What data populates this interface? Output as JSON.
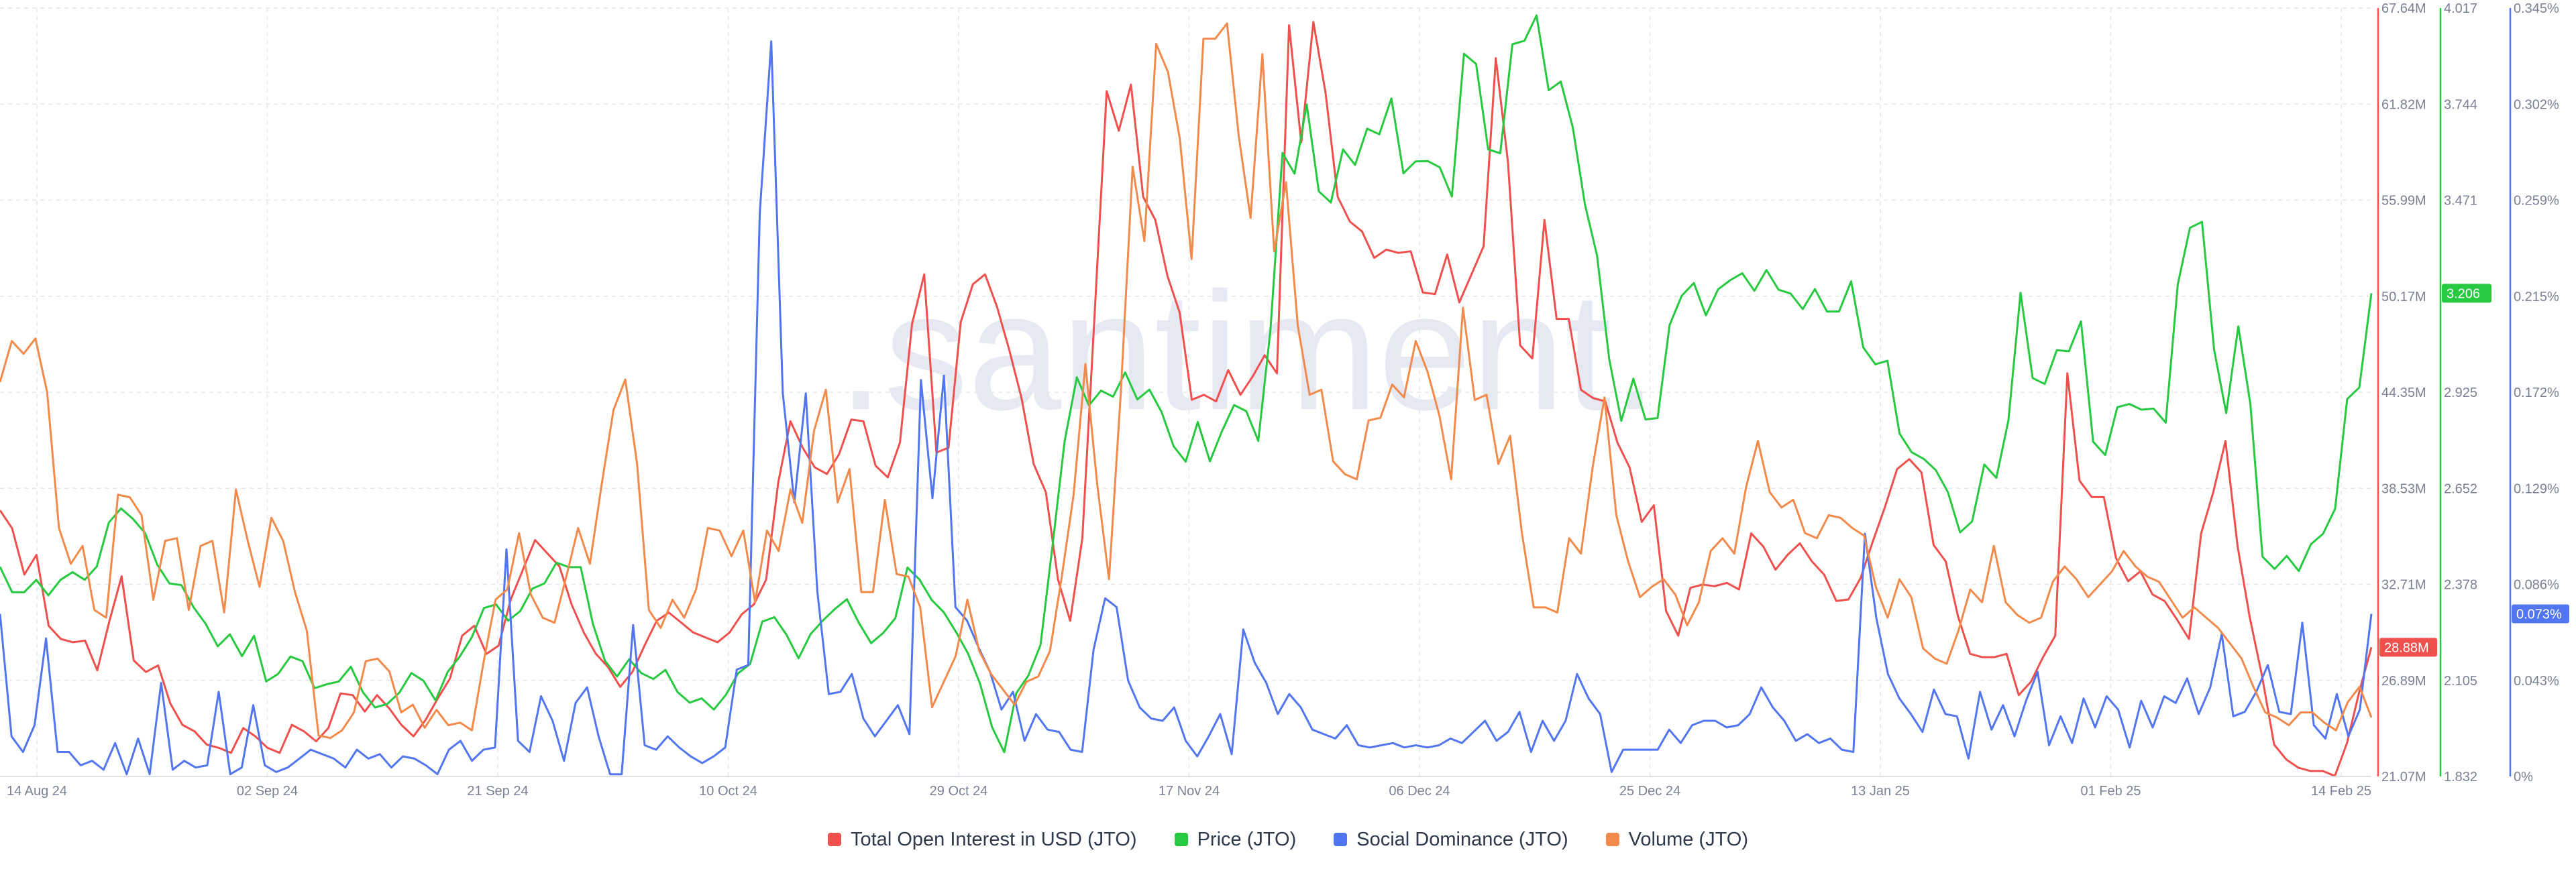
{
  "chart_data": {
    "type": "line",
    "title": "",
    "watermark": ".santiment.",
    "grid": true,
    "legend_position": "bottom-center",
    "x_ticks": [
      "14 Aug 24",
      "02 Sep 24",
      "21 Sep 24",
      "10 Oct 24",
      "29 Oct 24",
      "17 Nov 24",
      "06 Dec 24",
      "25 Dec 24",
      "13 Jan 25",
      "01 Feb 25",
      "14 Feb 25"
    ],
    "axes": {
      "oi": {
        "ticks": [
          "67.64M",
          "61.82M",
          "55.99M",
          "50.17M",
          "44.35M",
          "38.53M",
          "32.71M",
          "26.89M",
          "21.07M"
        ],
        "ylim": [
          21.07,
          67.64
        ],
        "unit": "M",
        "color": "#f0504d"
      },
      "price": {
        "ticks": [
          "4.017",
          "3.744",
          "3.471",
          "3.198",
          "2.925",
          "2.652",
          "2.378",
          "2.105",
          "1.832"
        ],
        "ylim": [
          1.832,
          4.017
        ],
        "color": "#26c940"
      },
      "social": {
        "ticks": [
          "0.345%",
          "0.302%",
          "0.259%",
          "0.215%",
          "0.172%",
          "0.129%",
          "0.086%",
          "0.043%",
          "0%"
        ],
        "ylim": [
          0,
          0.345
        ],
        "color": "#5275f0"
      }
    },
    "series": [
      {
        "name": "Total Open Interest in USD (JTO)",
        "key": "oi",
        "axis": "oi",
        "color": "#f0504d",
        "last_label": "28.88M",
        "values": [
          37.2,
          36.1,
          33.3,
          34.5,
          30.2,
          29.4,
          29.2,
          29.3,
          27.5,
          30.5,
          33.2,
          28.1,
          27.4,
          27.8,
          25.5,
          24.2,
          23.8,
          23.0,
          22.8,
          22.5,
          24.0,
          23.5,
          22.8,
          22.5,
          24.2,
          23.8,
          23.2,
          24.0,
          26.1,
          26.0,
          25.0,
          26.0,
          25.2,
          24.2,
          23.5,
          24.5,
          25.8,
          27.0,
          29.6,
          30.2,
          28.5,
          29.0,
          31.8,
          33.6,
          35.4,
          34.6,
          33.8,
          31.5,
          29.8,
          28.5,
          27.7,
          26.5,
          27.4,
          29.0,
          30.5,
          31.0,
          30.4,
          29.8,
          29.5,
          29.2,
          29.8,
          30.9,
          31.5,
          33.0,
          38.9,
          42.6,
          41.0,
          39.8,
          39.4,
          40.6,
          42.7,
          42.6,
          39.9,
          39.2,
          41.3,
          48.5,
          51.5,
          40.7,
          41.0,
          48.6,
          50.9,
          51.5,
          49.5,
          46.9,
          44.0,
          40.0,
          38.3,
          33.0,
          30.5,
          35.5,
          48.9,
          62.6,
          60.2,
          63.0,
          56.2,
          54.8,
          51.4,
          49.2,
          43.9,
          44.2,
          43.8,
          45.7,
          44.2,
          45.3,
          46.6,
          45.5,
          66.6,
          59.5,
          66.8,
          62.5,
          56.2,
          54.7,
          54.1,
          52.5,
          53.0,
          52.8,
          52.9,
          50.4,
          50.3,
          52.7,
          49.8,
          51.5,
          53.2,
          64.6,
          58.3,
          47.2,
          46.4,
          54.8,
          48.8,
          48.8,
          44.5,
          44.0,
          43.8,
          41.3,
          39.8,
          36.5,
          37.5,
          31.1,
          29.6,
          32.5,
          32.7,
          32.6,
          32.8,
          32.4,
          35.8,
          35.0,
          33.6,
          34.5,
          35.2,
          34.1,
          33.3,
          31.7,
          31.8,
          33.1,
          35.3,
          37.4,
          39.7,
          40.3,
          39.5,
          35.1,
          34.1,
          30.8,
          28.5,
          28.3,
          28.3,
          28.5,
          26.0,
          26.8,
          28.3,
          29.6,
          45.5,
          39.0,
          38.0,
          38.0,
          34.3,
          32.9,
          33.5,
          32.1,
          31.7,
          30.6,
          29.4,
          35.8,
          38.3,
          41.4,
          35.0,
          30.7,
          27.2,
          23.0,
          22.1,
          21.6,
          21.4,
          21.4,
          21.1,
          23.1,
          26.2,
          28.9
        ]
      },
      {
        "name": "Price (JTO)",
        "key": "price",
        "axis": "price",
        "color": "#26c940",
        "last_label": "3.206",
        "values": [
          2.428,
          2.356,
          2.356,
          2.391,
          2.347,
          2.391,
          2.413,
          2.391,
          2.429,
          2.554,
          2.594,
          2.564,
          2.524,
          2.434,
          2.381,
          2.376,
          2.313,
          2.266,
          2.202,
          2.236,
          2.174,
          2.232,
          2.102,
          2.124,
          2.173,
          2.16,
          2.083,
          2.094,
          2.102,
          2.144,
          2.071,
          2.028,
          2.038,
          2.07,
          2.126,
          2.104,
          2.048,
          2.129,
          2.173,
          2.228,
          2.311,
          2.321,
          2.275,
          2.302,
          2.366,
          2.381,
          2.44,
          2.427,
          2.427,
          2.266,
          2.161,
          2.116,
          2.165,
          2.126,
          2.109,
          2.135,
          2.072,
          2.042,
          2.054,
          2.022,
          2.064,
          2.125,
          2.152,
          2.272,
          2.285,
          2.235,
          2.168,
          2.237,
          2.275,
          2.308,
          2.336,
          2.268,
          2.211,
          2.24,
          2.282,
          2.426,
          2.392,
          2.334,
          2.299,
          2.244,
          2.182,
          2.096,
          1.972,
          1.901,
          2.069,
          2.119,
          2.206,
          2.49,
          2.786,
          2.967,
          2.887,
          2.929,
          2.912,
          2.981,
          2.904,
          2.932,
          2.869,
          2.771,
          2.727,
          2.84,
          2.728,
          2.814,
          2.888,
          2.871,
          2.786,
          3.101,
          3.605,
          3.546,
          3.743,
          3.496,
          3.464,
          3.615,
          3.571,
          3.674,
          3.658,
          3.76,
          3.547,
          3.581,
          3.582,
          3.564,
          3.481,
          3.887,
          3.858,
          3.615,
          3.604,
          3.914,
          3.924,
          3.996,
          3.783,
          3.808,
          3.677,
          3.458,
          3.313,
          3.019,
          2.843,
          2.963,
          2.847,
          2.851,
          3.116,
          3.199,
          3.235,
          3.143,
          3.217,
          3.243,
          3.263,
          3.213,
          3.272,
          3.216,
          3.205,
          3.161,
          3.218,
          3.154,
          3.154,
          3.24,
          3.052,
          3.004,
          3.014,
          2.807,
          2.754,
          2.735,
          2.703,
          2.64,
          2.526,
          2.557,
          2.719,
          2.681,
          2.844,
          3.207,
          2.965,
          2.948,
          3.044,
          3.041,
          3.126,
          2.784,
          2.746,
          2.882,
          2.891,
          2.875,
          2.878,
          2.838,
          3.231,
          3.392,
          3.409,
          3.046,
          2.865,
          3.112,
          2.891,
          2.457,
          2.422,
          2.459,
          2.416,
          2.492,
          2.522,
          2.593,
          2.905,
          2.938,
          3.206
        ]
      },
      {
        "name": "Social Dominance (JTO)",
        "key": "social",
        "axis": "social",
        "color": "#5275f0",
        "last_label": "0.073%",
        "values": [
          0.073,
          0.018,
          0.011,
          0.023,
          0.062,
          0.011,
          0.011,
          0.005,
          0.007,
          0.003,
          0.015,
          0.001,
          0.017,
          0.001,
          0.042,
          0.003,
          0.007,
          0.004,
          0.005,
          0.038,
          0.001,
          0.004,
          0.032,
          0.005,
          0.002,
          0.004,
          0.008,
          0.012,
          0.01,
          0.008,
          0.004,
          0.012,
          0.008,
          0.01,
          0.004,
          0.009,
          0.008,
          0.005,
          0.001,
          0.012,
          0.016,
          0.007,
          0.012,
          0.013,
          0.102,
          0.016,
          0.011,
          0.036,
          0.025,
          0.007,
          0.033,
          0.04,
          0.018,
          0.001,
          0.001,
          0.068,
          0.014,
          0.012,
          0.018,
          0.013,
          0.009,
          0.006,
          0.009,
          0.013,
          0.048,
          0.05,
          0.253,
          0.33,
          0.172,
          0.123,
          0.172,
          0.083,
          0.037,
          0.038,
          0.046,
          0.026,
          0.018,
          0.025,
          0.032,
          0.019,
          0.178,
          0.125,
          0.18,
          0.076,
          0.07,
          0.058,
          0.047,
          0.03,
          0.038,
          0.016,
          0.028,
          0.021,
          0.02,
          0.012,
          0.011,
          0.057,
          0.08,
          0.076,
          0.043,
          0.031,
          0.026,
          0.025,
          0.031,
          0.016,
          0.009,
          0.018,
          0.028,
          0.01,
          0.066,
          0.051,
          0.042,
          0.028,
          0.037,
          0.031,
          0.021,
          0.019,
          0.017,
          0.023,
          0.014,
          0.013,
          0.014,
          0.015,
          0.013,
          0.014,
          0.013,
          0.014,
          0.017,
          0.015,
          0.02,
          0.025,
          0.016,
          0.02,
          0.029,
          0.011,
          0.025,
          0.016,
          0.025,
          0.046,
          0.035,
          0.028,
          0.002,
          0.012,
          0.012,
          0.012,
          0.012,
          0.021,
          0.015,
          0.023,
          0.025,
          0.025,
          0.022,
          0.023,
          0.028,
          0.04,
          0.031,
          0.025,
          0.016,
          0.019,
          0.015,
          0.017,
          0.012,
          0.011,
          0.109,
          0.071,
          0.046,
          0.035,
          0.028,
          0.02,
          0.039,
          0.028,
          0.027,
          0.008,
          0.038,
          0.021,
          0.032,
          0.018,
          0.034,
          0.047,
          0.014,
          0.027,
          0.015,
          0.035,
          0.022,
          0.036,
          0.03,
          0.013,
          0.034,
          0.022,
          0.036,
          0.033,
          0.044,
          0.028,
          0.04,
          0.064,
          0.027,
          0.029,
          0.038,
          0.05,
          0.029,
          0.028,
          0.069,
          0.023,
          0.017,
          0.037,
          0.018,
          0.03,
          0.073
        ]
      },
      {
        "name": "Volume (JTO)",
        "key": "volume",
        "axis": "volume",
        "color": "#f28a4b",
        "values": [
          0.154,
          0.17,
          0.165,
          0.171,
          0.15,
          0.097,
          0.083,
          0.09,
          0.065,
          0.062,
          0.11,
          0.109,
          0.102,
          0.069,
          0.092,
          0.093,
          0.065,
          0.09,
          0.092,
          0.064,
          0.112,
          0.092,
          0.074,
          0.101,
          0.092,
          0.072,
          0.057,
          0.016,
          0.015,
          0.018,
          0.025,
          0.045,
          0.046,
          0.041,
          0.025,
          0.028,
          0.019,
          0.026,
          0.02,
          0.021,
          0.018,
          0.045,
          0.069,
          0.073,
          0.095,
          0.071,
          0.062,
          0.06,
          0.078,
          0.097,
          0.083,
          0.114,
          0.143,
          0.155,
          0.122,
          0.065,
          0.058,
          0.069,
          0.062,
          0.073,
          0.097,
          0.096,
          0.086,
          0.096,
          0.068,
          0.096,
          0.088,
          0.112,
          0.099,
          0.135,
          0.151,
          0.107,
          0.12,
          0.072,
          0.072,
          0.108,
          0.079,
          0.078,
          0.066,
          0.027,
          0.037,
          0.047,
          0.069,
          0.049,
          0.04,
          0.034,
          0.028,
          0.037,
          0.039,
          0.049,
          0.078,
          0.11,
          0.161,
          0.114,
          0.077,
          0.15,
          0.238,
          0.209,
          0.286,
          0.275,
          0.249,
          0.202,
          0.288,
          0.288,
          0.294,
          0.25,
          0.218,
          0.282,
          0.205,
          0.232,
          0.176,
          0.149,
          0.151,
          0.123,
          0.118,
          0.116,
          0.139,
          0.14,
          0.153,
          0.148,
          0.17,
          0.158,
          0.141,
          0.116,
          0.183,
          0.147,
          0.149,
          0.122,
          0.133,
          0.095,
          0.066,
          0.066,
          0.064,
          0.093,
          0.087,
          0.121,
          0.148,
          0.102,
          0.084,
          0.07,
          0.074,
          0.077,
          0.071,
          0.059,
          0.068,
          0.088,
          0.093,
          0.087,
          0.113,
          0.131,
          0.111,
          0.105,
          0.108,
          0.095,
          0.093,
          0.102,
          0.101,
          0.097,
          0.094,
          0.074,
          0.062,
          0.077,
          0.07,
          0.05,
          0.046,
          0.044,
          0.057,
          0.073,
          0.068,
          0.09,
          0.068,
          0.063,
          0.06,
          0.062,
          0.076,
          0.082,
          0.077,
          0.07,
          0.075,
          0.08,
          0.088,
          0.082,
          0.078,
          0.076,
          0.069,
          0.062,
          0.066,
          0.062,
          0.058,
          0.052,
          0.046,
          0.035,
          0.025,
          0.023,
          0.02,
          0.025,
          0.025,
          0.021,
          0.018,
          0.029,
          0.035,
          0.023
        ]
      }
    ],
    "legend": [
      {
        "label": "Total Open Interest in USD (JTO)",
        "color": "#f0504d"
      },
      {
        "label": "Price (JTO)",
        "color": "#26c940"
      },
      {
        "label": "Social Dominance (JTO)",
        "color": "#5275f0"
      },
      {
        "label": "Volume (JTO)",
        "color": "#f28a4b"
      }
    ]
  }
}
